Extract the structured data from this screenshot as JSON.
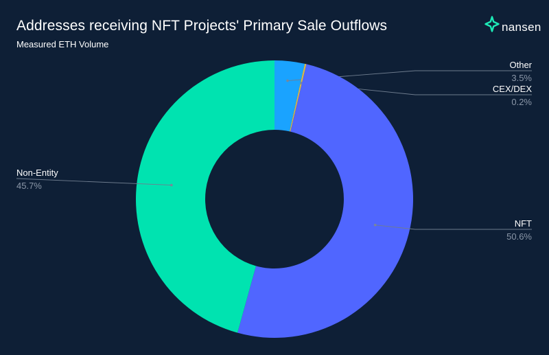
{
  "brand": {
    "name": "nansen",
    "icon": "nansen-logo-icon",
    "color": "#1de9b6"
  },
  "chart_data": {
    "type": "pie",
    "donut": true,
    "title": "Addresses receiving NFT Projects' Primary Sale Outflows",
    "subtitle": "Measured ETH Volume",
    "unit": "%",
    "slices": [
      {
        "label": "Other",
        "value": 3.5,
        "display": "3.5%",
        "color": "#1aa3ff",
        "label_side": "right"
      },
      {
        "label": "CEX/DEX",
        "value": 0.2,
        "display": "0.2%",
        "color": "#d9b84c",
        "label_side": "right"
      },
      {
        "label": "NFT",
        "value": 50.6,
        "display": "50.6%",
        "color": "#5066ff",
        "label_side": "right"
      },
      {
        "label": "Non-Entity",
        "value": 45.7,
        "display": "45.7%",
        "color": "#00e3b0",
        "label_side": "left"
      }
    ]
  }
}
